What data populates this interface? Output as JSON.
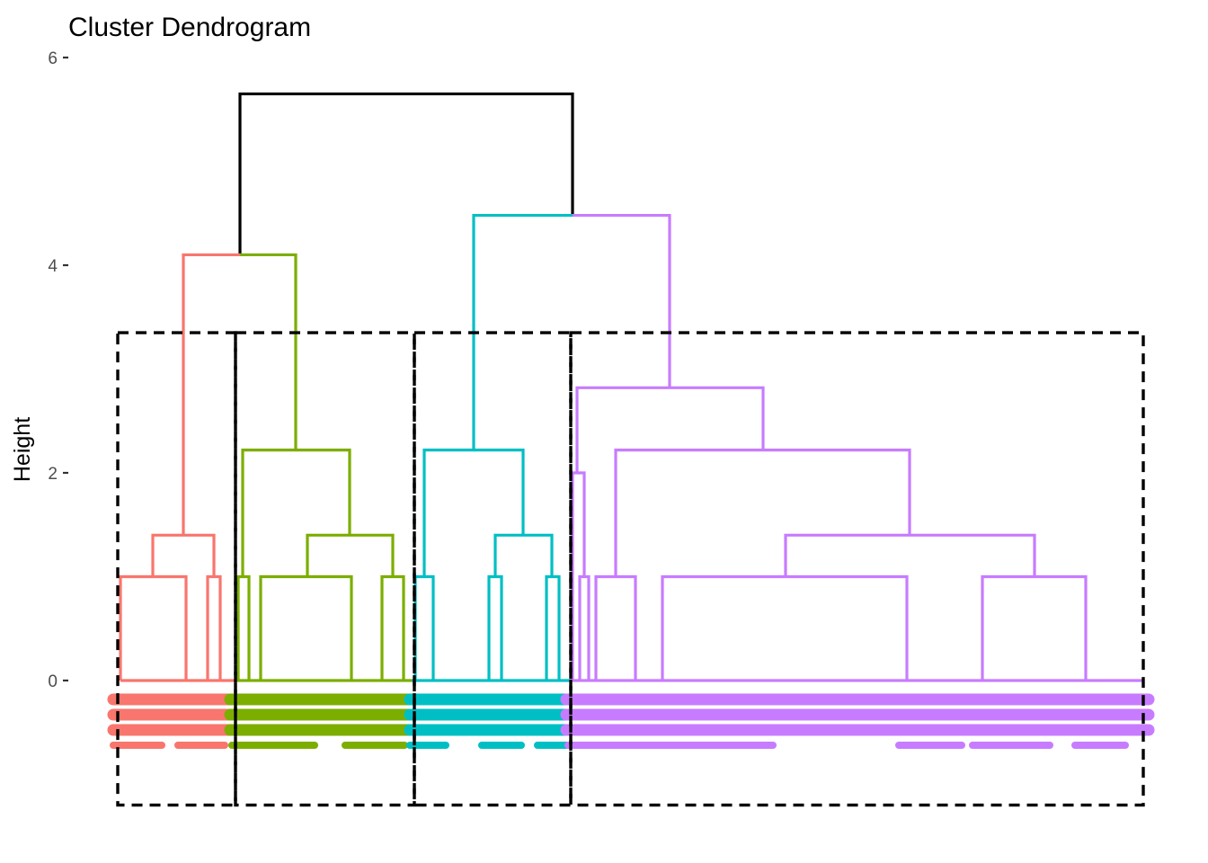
{
  "chart_data": {
    "type": "dendrogram",
    "title": "Cluster Dendrogram",
    "xlabel": "",
    "ylabel": "Height",
    "ylim": [
      -1.2,
      6
    ],
    "y_ticks": [
      0,
      2,
      4,
      6
    ],
    "grid": false,
    "legend": "none",
    "k_clusters": 4,
    "cut_rectangles": "dashed",
    "colors": {
      "root": "#000000",
      "cluster_1": "#F8766D",
      "cluster_2": "#7CAE00",
      "cluster_3": "#00BFC4",
      "cluster_4": "#C77CFF"
    },
    "merges": [
      {
        "height": 5.65,
        "color": "root"
      },
      {
        "height": 4.1,
        "color": "cluster_1"
      },
      {
        "height": 4.48,
        "color": "cluster_4"
      },
      {
        "height": 2.82,
        "color": "cluster_4"
      },
      {
        "height": 2.22,
        "color": "cluster_2"
      },
      {
        "height": 2.22,
        "color": "cluster_3"
      },
      {
        "height": 2.22,
        "color": "cluster_4"
      },
      {
        "height": 1.4,
        "color": "cluster_1"
      },
      {
        "height": 1.4,
        "color": "cluster_2"
      },
      {
        "height": 1.4,
        "color": "cluster_3"
      },
      {
        "height": 1.4,
        "color": "cluster_4"
      }
    ]
  }
}
